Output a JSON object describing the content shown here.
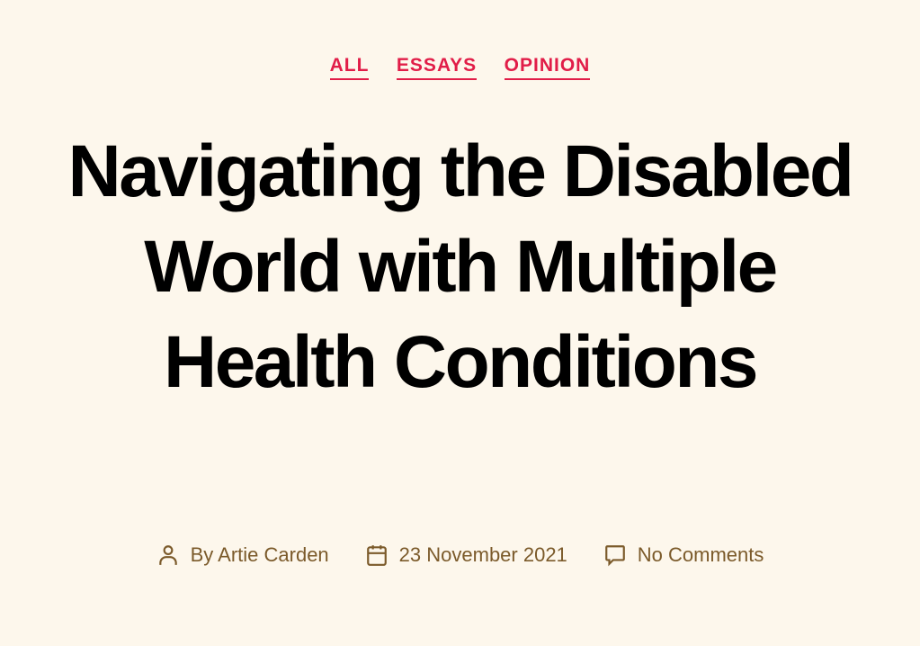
{
  "categories": [
    {
      "label": "ALL"
    },
    {
      "label": "ESSAYS"
    },
    {
      "label": "OPINION"
    }
  ],
  "title": "Navigating the Disabled World with Multiple Health Conditions",
  "meta": {
    "author": "By Artie Carden",
    "date": "23 November 2021",
    "comments": "No Comments"
  },
  "colors": {
    "accent": "#e11d48",
    "meta": "#7b5a2a",
    "background": "#fdf7ec"
  }
}
